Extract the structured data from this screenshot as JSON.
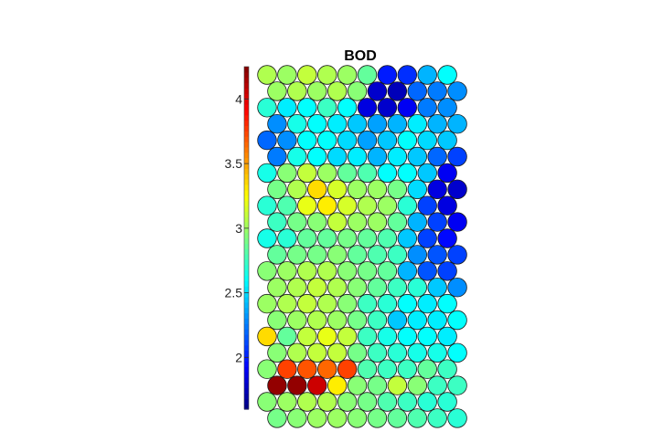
{
  "chart_data": {
    "type": "heatmap",
    "subtype": "som-hexagonal-component-plane",
    "title": "BOD",
    "colormap": "jet",
    "colorbar": {
      "min": 1.6,
      "max": 4.25,
      "ticks": [
        2,
        2.5,
        3,
        3.5,
        4
      ],
      "tick_labels": [
        "2",
        "2.5",
        "3",
        "3.5",
        "4"
      ],
      "placement": "left"
    },
    "grid": {
      "rows": 22,
      "cols": 10,
      "odd_row_offset": "right"
    },
    "values": [
      [
        3.05,
        3.0,
        3.1,
        3.05,
        3.0,
        2.85,
        2.0,
        2.05,
        2.4,
        2.6
      ],
      [
        3.0,
        3.05,
        3.0,
        3.05,
        2.95,
        1.8,
        1.75,
        2.2,
        2.25,
        2.3
      ],
      [
        2.7,
        2.55,
        2.6,
        2.75,
        2.6,
        1.85,
        1.8,
        1.9,
        2.25,
        2.3
      ],
      [
        2.3,
        2.65,
        2.6,
        2.55,
        2.45,
        2.35,
        2.4,
        2.55,
        2.4,
        2.4
      ],
      [
        2.2,
        2.3,
        2.6,
        2.6,
        2.5,
        2.35,
        2.45,
        2.6,
        2.5,
        2.45
      ],
      [
        2.25,
        2.65,
        2.6,
        2.5,
        2.55,
        2.4,
        2.55,
        2.45,
        2.2,
        2.1
      ],
      [
        2.65,
        2.95,
        3.1,
        3.0,
        2.85,
        2.8,
        2.6,
        2.6,
        2.45,
        1.9
      ],
      [
        2.9,
        3.05,
        3.35,
        3.15,
        3.0,
        3.0,
        2.9,
        2.5,
        1.85,
        1.8
      ],
      [
        2.7,
        2.8,
        3.2,
        3.3,
        3.15,
        3.05,
        3.0,
        2.7,
        2.1,
        1.85
      ],
      [
        2.75,
        2.9,
        2.95,
        3.1,
        3.0,
        3.0,
        2.85,
        2.4,
        2.1,
        1.9
      ],
      [
        2.65,
        2.7,
        2.85,
        2.85,
        2.9,
        2.85,
        2.8,
        2.45,
        2.1,
        1.95
      ],
      [
        2.85,
        2.9,
        2.9,
        2.95,
        2.85,
        2.8,
        2.75,
        2.3,
        2.15,
        2.1
      ],
      [
        2.95,
        3.0,
        3.05,
        3.05,
        2.95,
        2.9,
        2.85,
        2.4,
        2.15,
        2.1
      ],
      [
        3.0,
        3.05,
        3.1,
        3.05,
        2.95,
        2.85,
        2.75,
        2.7,
        2.45,
        2.3
      ],
      [
        3.0,
        3.05,
        3.1,
        3.05,
        2.95,
        2.75,
        2.7,
        2.6,
        2.55,
        2.6
      ],
      [
        2.95,
        3.0,
        3.05,
        3.0,
        2.9,
        2.75,
        2.45,
        2.55,
        2.55,
        2.6
      ],
      [
        3.35,
        2.85,
        3.1,
        3.2,
        3.1,
        2.75,
        2.65,
        2.6,
        2.6,
        2.55
      ],
      [
        2.95,
        3.05,
        3.1,
        3.1,
        2.9,
        2.75,
        2.7,
        2.65,
        2.65,
        2.6
      ],
      [
        2.95,
        3.75,
        3.7,
        3.65,
        3.75,
        2.8,
        2.75,
        2.75,
        2.85,
        2.75
      ],
      [
        4.2,
        4.2,
        4.05,
        3.3,
        2.95,
        2.9,
        3.1,
        2.95,
        2.75,
        2.75
      ],
      [
        2.95,
        3.0,
        3.05,
        3.05,
        2.95,
        2.9,
        2.8,
        2.75,
        2.7,
        2.7
      ],
      [
        2.9,
        2.95,
        3.0,
        3.0,
        2.95,
        2.9,
        2.85,
        2.8,
        2.75,
        2.7
      ]
    ]
  }
}
